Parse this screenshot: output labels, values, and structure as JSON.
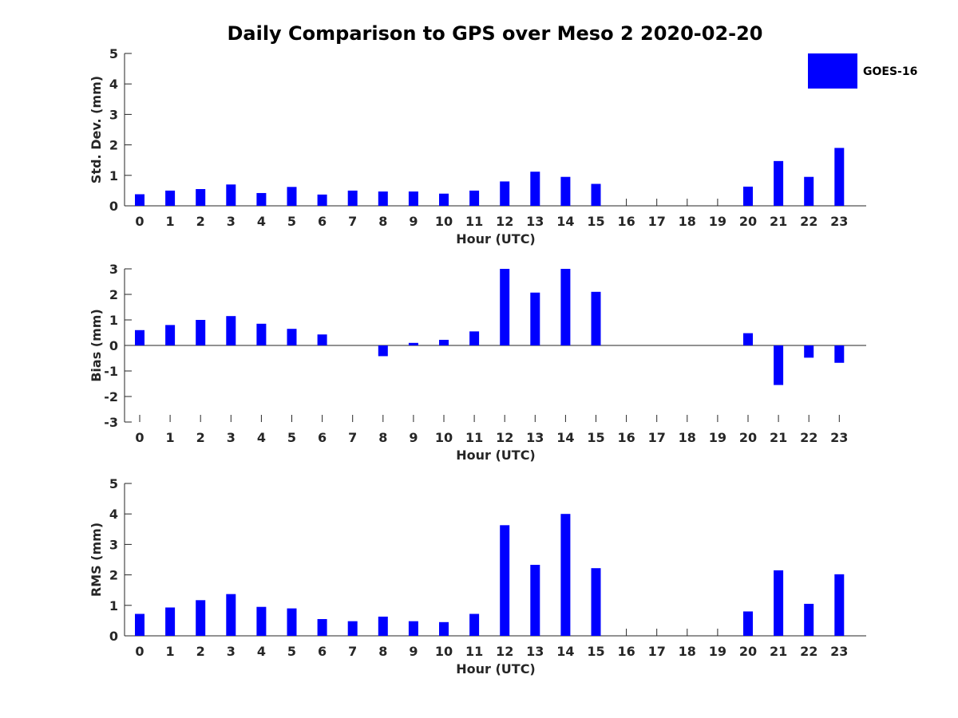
{
  "title": "Daily Comparison to GPS over Meso 2 2020-02-20",
  "legend": {
    "label": "GOES-16",
    "placement": "top-right"
  },
  "colors": {
    "bar": "#0000ff",
    "axis": "#262626"
  },
  "chart_data": [
    {
      "type": "bar",
      "categories": [
        "0",
        "1",
        "2",
        "3",
        "4",
        "5",
        "6",
        "7",
        "8",
        "9",
        "10",
        "11",
        "12",
        "13",
        "14",
        "15",
        "16",
        "17",
        "18",
        "19",
        "20",
        "21",
        "22",
        "23"
      ],
      "series": [
        {
          "name": "GOES-16",
          "values": [
            0.38,
            0.5,
            0.55,
            0.7,
            0.42,
            0.62,
            0.37,
            0.5,
            0.47,
            0.47,
            0.4,
            0.5,
            0.8,
            1.12,
            0.95,
            0.72,
            null,
            null,
            null,
            null,
            0.63,
            1.47,
            0.95,
            1.9
          ]
        }
      ],
      "xlabel": "Hour (UTC)",
      "ylabel": "Std. Dev. (mm)",
      "ylim": [
        0,
        5
      ],
      "yticks": [
        0,
        1,
        2,
        3,
        4,
        5
      ],
      "grid": false
    },
    {
      "type": "bar",
      "categories": [
        "0",
        "1",
        "2",
        "3",
        "4",
        "5",
        "6",
        "7",
        "8",
        "9",
        "10",
        "11",
        "12",
        "13",
        "14",
        "15",
        "16",
        "17",
        "18",
        "19",
        "20",
        "21",
        "22",
        "23"
      ],
      "series": [
        {
          "name": "GOES-16",
          "values": [
            0.6,
            0.8,
            1.0,
            1.15,
            0.85,
            0.65,
            0.43,
            null,
            -0.42,
            0.1,
            0.22,
            0.55,
            3.0,
            2.07,
            3.0,
            2.1,
            null,
            null,
            null,
            null,
            0.48,
            -1.55,
            -0.48,
            -0.68
          ]
        }
      ],
      "xlabel": "Hour (UTC)",
      "ylabel": "Bias (mm)",
      "ylim": [
        -3,
        3
      ],
      "yticks": [
        -3,
        -2,
        -1,
        0,
        1,
        2,
        3
      ],
      "grid": false
    },
    {
      "type": "bar",
      "categories": [
        "0",
        "1",
        "2",
        "3",
        "4",
        "5",
        "6",
        "7",
        "8",
        "9",
        "10",
        "11",
        "12",
        "13",
        "14",
        "15",
        "16",
        "17",
        "18",
        "19",
        "20",
        "21",
        "22",
        "23"
      ],
      "series": [
        {
          "name": "GOES-16",
          "values": [
            0.72,
            0.93,
            1.17,
            1.37,
            0.95,
            0.9,
            0.55,
            0.48,
            0.63,
            0.48,
            0.45,
            0.72,
            3.63,
            2.33,
            4.0,
            2.22,
            null,
            null,
            null,
            null,
            0.8,
            2.15,
            1.05,
            2.02
          ]
        }
      ],
      "xlabel": "Hour (UTC)",
      "ylabel": "RMS (mm)",
      "ylim": [
        0,
        5
      ],
      "yticks": [
        0,
        1,
        2,
        3,
        4,
        5
      ],
      "grid": false
    }
  ]
}
